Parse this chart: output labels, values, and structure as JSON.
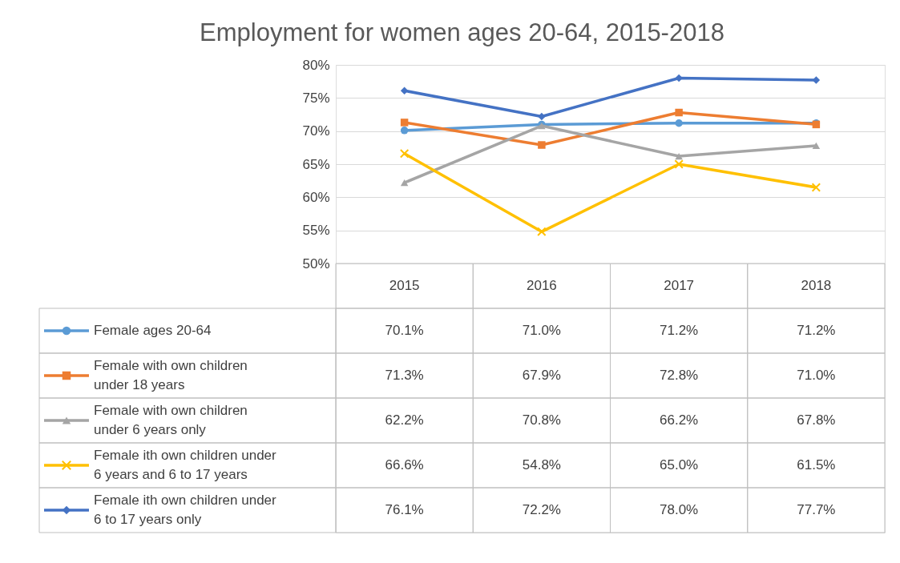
{
  "chart_data": {
    "type": "line",
    "title": "Employment for women ages 20-64, 2015-2018",
    "categories": [
      "2015",
      "2016",
      "2017",
      "2018"
    ],
    "ylim": [
      50,
      80
    ],
    "yticks": [
      {
        "value": 50,
        "label": "50%"
      },
      {
        "value": 55,
        "label": "55%"
      },
      {
        "value": 60,
        "label": "60%"
      },
      {
        "value": 65,
        "label": "65%"
      },
      {
        "value": 70,
        "label": "70%"
      },
      {
        "value": 75,
        "label": "75%"
      },
      {
        "value": 80,
        "label": "80%"
      }
    ],
    "grid": "y",
    "legend": "bottom",
    "line_style": "solid",
    "series": [
      {
        "name": "Female ages 20-64",
        "color": "#5b9bd5",
        "marker": "circle",
        "values": [
          70.1,
          71.0,
          71.2,
          71.2
        ],
        "value_labels": [
          "70.1%",
          "71.0%",
          "71.2%",
          "71.2%"
        ]
      },
      {
        "name": "Female with own children under 18 years",
        "color": "#ed7d31",
        "marker": "square",
        "values": [
          71.3,
          67.9,
          72.8,
          71.0
        ],
        "value_labels": [
          "71.3%",
          "67.9%",
          "72.8%",
          "71.0%"
        ]
      },
      {
        "name": "Female with own children under 6 years only",
        "color": "#a5a5a5",
        "marker": "triangle",
        "values": [
          62.2,
          70.8,
          66.2,
          67.8
        ],
        "value_labels": [
          "62.2%",
          "70.8%",
          "66.2%",
          "67.8%"
        ]
      },
      {
        "name": "Female ith own children under 6 years and 6 to 17 years",
        "color": "#ffc000",
        "marker": "cross",
        "values": [
          66.6,
          54.8,
          65.0,
          61.5
        ],
        "value_labels": [
          "66.6%",
          "54.8%",
          "65.0%",
          "61.5%"
        ]
      },
      {
        "name": "Female ith own children under 6 to 17 years only",
        "color": "#4472c4",
        "marker": "diamond",
        "values": [
          76.1,
          72.2,
          78.0,
          77.7
        ],
        "value_labels": [
          "76.1%",
          "72.2%",
          "78.0%",
          "77.7%"
        ]
      }
    ]
  }
}
